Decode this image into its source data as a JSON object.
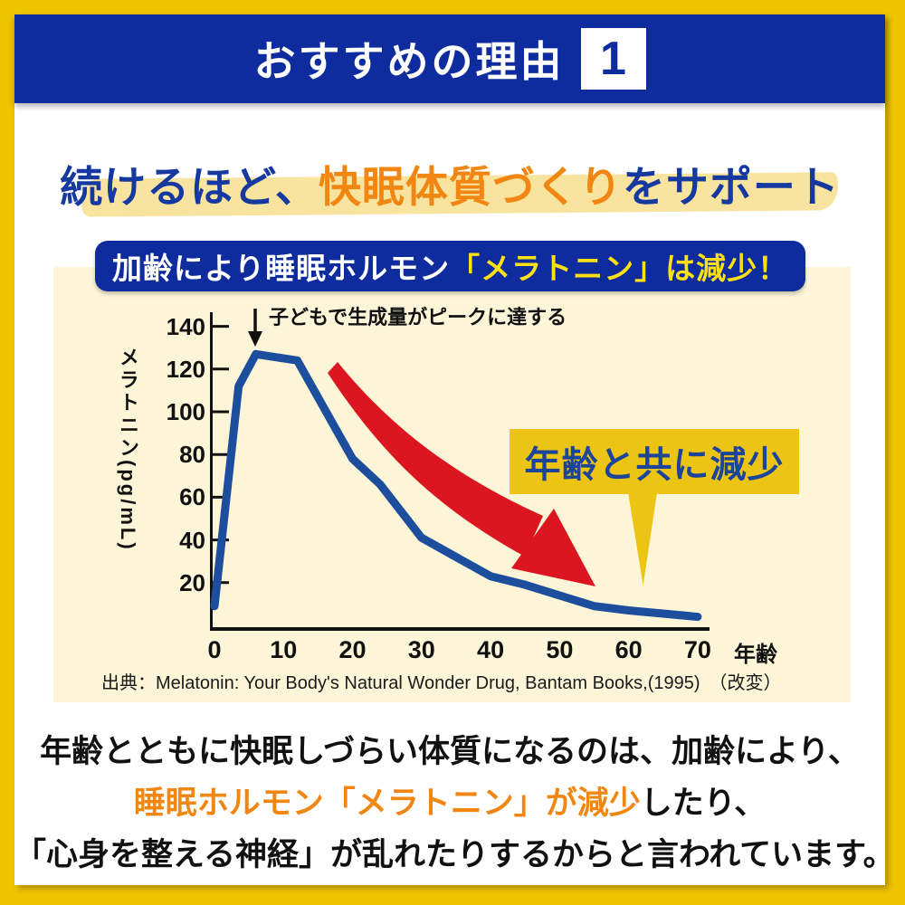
{
  "header": {
    "title": "おすすめの理由",
    "number": "1"
  },
  "headline": {
    "part1": "続けるほど、",
    "emphasis": "快眠体質づくり",
    "part2": "をサポート"
  },
  "banner": {
    "white_text": "加齢により睡眠ホルモン",
    "yellow_text": "「メラトニン」は減少！"
  },
  "chart_data": {
    "type": "line",
    "x": [
      0,
      3.5,
      6,
      12,
      20,
      24,
      30,
      40,
      45,
      55,
      60,
      70
    ],
    "values": [
      9,
      112,
      127,
      124,
      78,
      66,
      41,
      23,
      19,
      9,
      7,
      4
    ],
    "x_ticks": [
      0,
      10,
      20,
      30,
      40,
      50,
      60,
      70
    ],
    "y_ticks": [
      20,
      40,
      60,
      80,
      100,
      120,
      140
    ],
    "xlim": [
      0,
      74
    ],
    "ylim": [
      0,
      145
    ],
    "xlabel": "年齢",
    "ylabel": "メラトニン(pg/mL)",
    "annotation": "子どもで生成量がピークに達する",
    "callout": "年齢と共に減少",
    "grid": false,
    "legend": "none",
    "line_color": "#1d4e9e",
    "arrow_color": "#dc1620"
  },
  "source": "出典：Melatonin: Your Body's Natural Wonder Drug, Bantam Books,(1995)　（改変）",
  "paragraph": {
    "line1": "年齢とともに快眠しづらい体質になるのは、加齢により、",
    "line2_orange": "睡眠ホルモン「メラトニン」が減少",
    "line2_black": "したり、",
    "line3": "「心身を整える神経」が乱れたりするからと言われています。"
  },
  "colors": {
    "gold_frame": "#f1c400",
    "deep_blue": "#0e2c9e",
    "headline_blue": "#16399f",
    "orange": "#f18712",
    "banner_yellow_text": "#ffe013",
    "highlight_yellow": "#f8e49e",
    "cream_panel": "#fdf5d8",
    "curve_blue": "#1d4e9e",
    "arrow_red": "#dc1620",
    "callout_gold": "#ecc414",
    "callout_text_blue": "#1c4499",
    "text_black": "#111111"
  }
}
